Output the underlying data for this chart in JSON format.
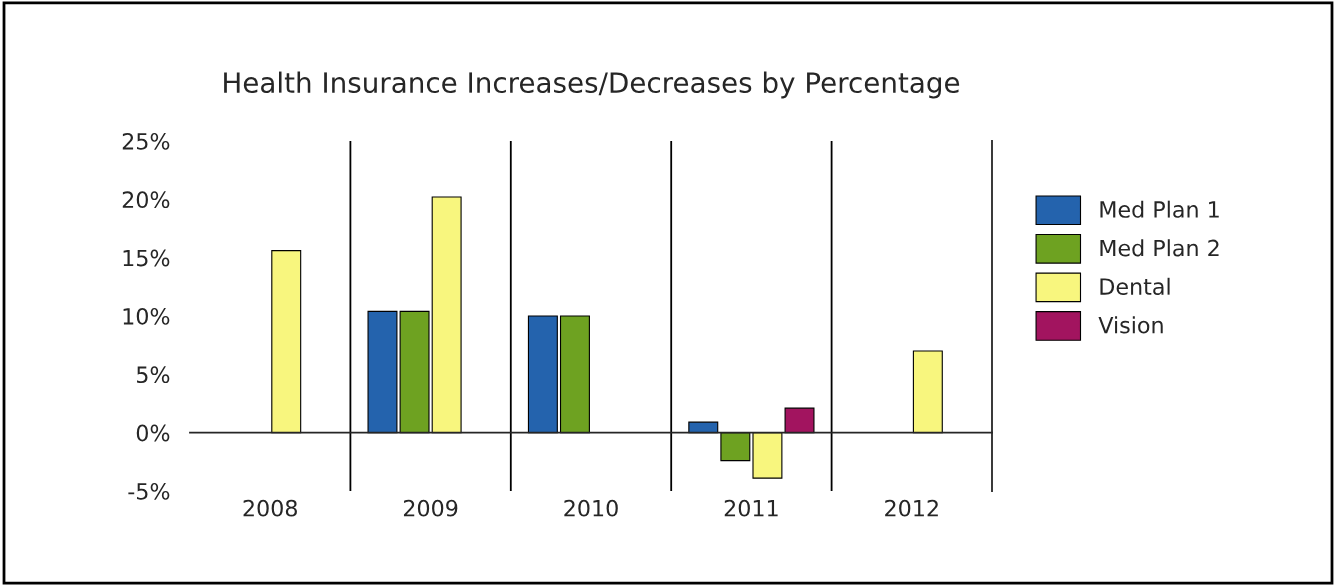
{
  "chart_data": {
    "type": "bar",
    "title": "Health Insurance Increases/Decreases by Percentage",
    "categories": [
      "2008",
      "2009",
      "2010",
      "2011",
      "2012"
    ],
    "series": [
      {
        "name": "Med Plan 1",
        "color": "#2463ad",
        "values": [
          null,
          10.4,
          10.0,
          0.9,
          null
        ]
      },
      {
        "name": "Med Plan 2",
        "color": "#6ea221",
        "values": [
          null,
          10.4,
          10.0,
          -2.4,
          null
        ]
      },
      {
        "name": "Dental",
        "color": "#f8f67e",
        "values": [
          15.6,
          20.2,
          null,
          -3.9,
          7.0
        ]
      },
      {
        "name": "Vision",
        "color": "#a2145f",
        "values": [
          null,
          null,
          null,
          2.1,
          null
        ]
      }
    ],
    "ylim": [
      -5,
      25
    ],
    "yticks": [
      {
        "value": -5,
        "label": "-5%"
      },
      {
        "value": 0,
        "label": "0%"
      },
      {
        "value": 5,
        "label": "5%"
      },
      {
        "value": 10,
        "label": "10%"
      },
      {
        "value": 15,
        "label": "15%"
      },
      {
        "value": 20,
        "label": "20%"
      },
      {
        "value": 25,
        "label": "25%"
      }
    ],
    "grid": "x",
    "legend": "right"
  }
}
